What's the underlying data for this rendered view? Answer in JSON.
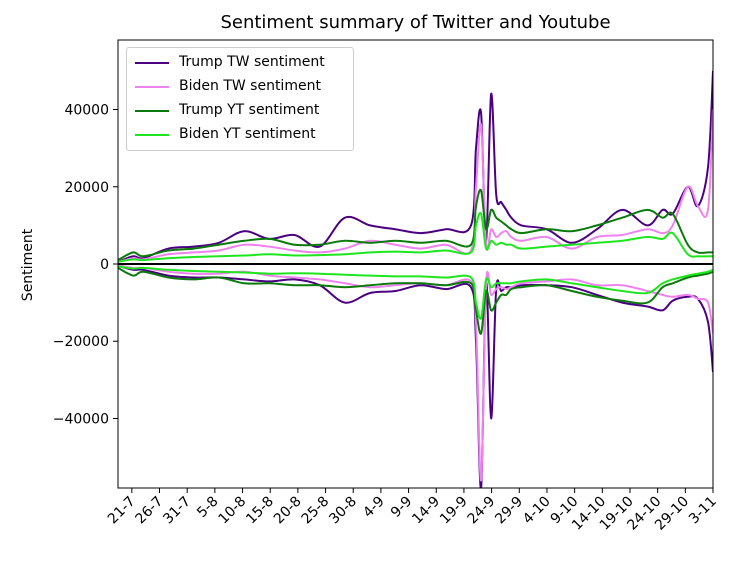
{
  "chart_data": {
    "type": "line",
    "title": "Sentiment summary of Twitter and Youtube",
    "xlabel": "",
    "ylabel": "Sentiment",
    "x_ticks": [
      "21-7",
      "26-7",
      "31-7",
      "5-8",
      "10-8",
      "15-8",
      "20-8",
      "25-8",
      "30-8",
      "4-9",
      "9-9",
      "14-9",
      "19-9",
      "24-9",
      "29-9",
      "4-10",
      "9-10",
      "14-10",
      "19-10",
      "24-10",
      "29-10",
      "3-11"
    ],
    "y_ticks": [
      -40000,
      -20000,
      0,
      20000,
      40000
    ],
    "ylim": [
      -58000,
      58000
    ],
    "legend": {
      "placement": "top-left"
    },
    "zero_line": true,
    "x_anchors": [
      0,
      3,
      5,
      10,
      15,
      20,
      25,
      30,
      35,
      40,
      45,
      50,
      55,
      60,
      65,
      70,
      71,
      72,
      73,
      74,
      75,
      76,
      77,
      78,
      80,
      85,
      90,
      95,
      100,
      105,
      108,
      110,
      113,
      115,
      117,
      118
    ],
    "series": [
      {
        "name": "Trump TW sentiment",
        "color": "#4b0082",
        "pos": [
          500,
          2000,
          1500,
          4000,
          4500,
          5500,
          8500,
          6500,
          7500,
          4500,
          12000,
          10000,
          9000,
          8000,
          9000,
          10000,
          30000,
          39000,
          6000,
          44000,
          18000,
          16000,
          14000,
          12000,
          10000,
          9000,
          5500,
          9000,
          14000,
          10000,
          14000,
          13000,
          20000,
          15000,
          25000,
          50000
        ],
        "neg": [
          -500,
          -1500,
          -1500,
          -3000,
          -3500,
          -3500,
          -4000,
          -4500,
          -4000,
          -5500,
          -10000,
          -7500,
          -7000,
          -5500,
          -6500,
          -6000,
          -20000,
          -58000,
          -5000,
          -40000,
          -6500,
          -7000,
          -6000,
          -6000,
          -5500,
          -5500,
          -6000,
          -8000,
          -10000,
          -11000,
          -12000,
          -9500,
          -8500,
          -9000,
          -15000,
          -28000
        ]
      },
      {
        "name": "Biden TW sentiment",
        "color": "#ee82ee",
        "pos": [
          500,
          1500,
          1200,
          2500,
          3000,
          3500,
          5000,
          4500,
          3500,
          3000,
          4000,
          6000,
          5000,
          4000,
          5000,
          3500,
          20000,
          36000,
          5000,
          9000,
          7000,
          8000,
          8500,
          7000,
          6000,
          7000,
          4000,
          7000,
          7500,
          9000,
          8000,
          10000,
          20000,
          15000,
          14000,
          40000
        ],
        "neg": [
          -300,
          -1000,
          -1000,
          -2000,
          -2500,
          -2500,
          -2000,
          -3000,
          -3500,
          -4000,
          -5000,
          -6000,
          -5500,
          -5000,
          -5500,
          -4500,
          -15000,
          -56000,
          -5000,
          -8000,
          -6500,
          -6000,
          -6500,
          -6000,
          -5000,
          -4500,
          -4000,
          -5500,
          -5500,
          -7000,
          -8000,
          -8500,
          -8000,
          -9000,
          -10000,
          -18000
        ]
      },
      {
        "name": "Trump YT sentiment",
        "color": "#0a7a0a",
        "pos": [
          1000,
          3000,
          2000,
          3500,
          4000,
          5000,
          6000,
          6500,
          5000,
          5000,
          6000,
          5500,
          6000,
          5500,
          6000,
          5000,
          15000,
          19000,
          9000,
          14000,
          12000,
          11000,
          10000,
          9000,
          8000,
          9000,
          8500,
          10000,
          12000,
          14000,
          12000,
          13000,
          5000,
          3000,
          3000,
          3000
        ],
        "neg": [
          -1000,
          -3000,
          -2000,
          -3500,
          -4000,
          -3500,
          -5000,
          -5000,
          -5500,
          -5500,
          -6000,
          -5500,
          -5000,
          -5000,
          -5500,
          -5000,
          -12000,
          -18000,
          -7000,
          -12000,
          -10000,
          -8000,
          -8000,
          -6500,
          -6000,
          -5500,
          -7000,
          -8500,
          -9500,
          -10000,
          -6000,
          -5000,
          -3500,
          -3000,
          -2500,
          -2000
        ]
      },
      {
        "name": "Biden YT sentiment",
        "color": "#1ee61e",
        "pos": [
          600,
          1200,
          1000,
          1500,
          1800,
          2000,
          2200,
          2500,
          2200,
          2300,
          2500,
          3000,
          3200,
          3000,
          3500,
          3000,
          10000,
          13000,
          4000,
          6000,
          5000,
          5500,
          5000,
          5000,
          4000,
          4500,
          5000,
          5500,
          6000,
          7000,
          6500,
          8000,
          2500,
          2000,
          2000,
          2000
        ],
        "neg": [
          -600,
          -1200,
          -1000,
          -1500,
          -1800,
          -2000,
          -2200,
          -2500,
          -2400,
          -2500,
          -2800,
          -3000,
          -3200,
          -3200,
          -3500,
          -3500,
          -10000,
          -14000,
          -4000,
          -6000,
          -5000,
          -5000,
          -5000,
          -5000,
          -4500,
          -4000,
          -5000,
          -6000,
          -7000,
          -7500,
          -5000,
          -4000,
          -3000,
          -2500,
          -2000,
          -1500
        ]
      }
    ]
  }
}
